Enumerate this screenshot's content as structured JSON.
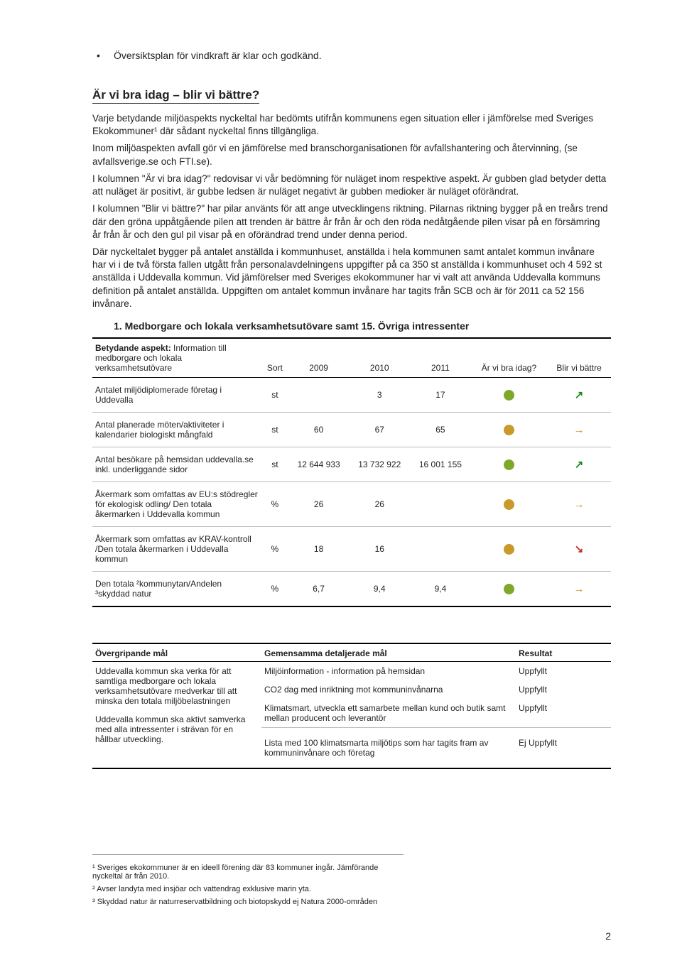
{
  "bullet": "Översiktsplan för vindkraft är klar och godkänd.",
  "heading": "Är vi bra idag – blir vi bättre?",
  "paras": [
    "Varje betydande miljöaspekts nyckeltal har bedömts utifrån kommunens egen situation eller i jämförelse med Sveriges Ekokommuner¹ där sådant nyckeltal finns tillgängliga.",
    "Inom miljöaspekten avfall gör vi en jämförelse med branschorganisationen för avfallshantering och återvinning, (se avfallsverige.se och FTI.se).",
    "I kolumnen \"Är vi bra idag?\" redovisar vi vår bedömning för nuläget inom respektive aspekt. Är gubben glad betyder detta att nuläget är positivt, är gubbe ledsen är nuläget negativt är gubben medioker är nuläget oförändrat.",
    "I kolumnen \"Blir vi bättre?\" har pilar använts för att ange utvecklingens riktning. Pilarnas riktning bygger på en treårs trend där den gröna uppåtgående pilen att trenden är bättre år från år och den röda nedåtgående pilen visar på en försämring år från år och den gul pil visar på en oförändrad trend under denna period.",
    "Där nyckeltalet bygger på antalet anställda i kommunhuset, anställda i hela kommunen samt antalet kommun invånare har vi i de två första fallen utgått från personalavdelningens uppgifter på ca 350 st anställda i kommunhuset och 4 592 st anställda i Uddevalla kommun. Vid jämförelser med Sveriges ekokommuner har vi valt att använda Uddevalla kommuns definition på antalet anställda. Uppgiften om antalet kommun invånare har tagits från SCB och är för 2011 ca 52 156 invånare."
  ],
  "subheading": "1.   Medborgare och lokala verksamhetsutövare samt 15. Övriga intressenter",
  "table1": {
    "head_label": "Betydande aspekt: Information till medborgare och lokala verksamhetsutövare",
    "cols": [
      "Sort",
      "2009",
      "2010",
      "2011",
      "Är vi bra idag?",
      "Blir vi bättre"
    ],
    "rows": [
      {
        "aspect": "Antalet miljödiplomerade företag i Uddevalla",
        "sort": "st",
        "v2009": "",
        "v2010": "3",
        "v2011": "17",
        "dot_color": "#7fa82b",
        "arrow": "↗",
        "arrow_color": "#1e8a1e"
      },
      {
        "aspect": "Antal planerade möten/aktiviteter i kalendarier biologiskt mångfald",
        "sort": "st",
        "v2009": "60",
        "v2010": "67",
        "v2011": "65",
        "dot_color": "#c79a2a",
        "arrow": "→",
        "arrow_color": "#c79a2a"
      },
      {
        "aspect": "Antal besökare på hemsidan uddevalla.se inkl. underliggande sidor",
        "sort": "st",
        "v2009": "12 644 933",
        "v2010": "13 732 922",
        "v2011": "16 001 155",
        "dot_color": "#7fa82b",
        "arrow": "↗",
        "arrow_color": "#1e8a1e"
      },
      {
        "aspect": "Åkermark som omfattas av EU:s stödregler för ekologisk odling/ Den totala åkermarken i Uddevalla kommun",
        "sort": "%",
        "v2009": "26",
        "v2010": "26",
        "v2011": "",
        "dot_color": "#c79a2a",
        "arrow": "→",
        "arrow_color": "#c79a2a"
      },
      {
        "aspect": "Åkermark som omfattas av KRAV-kontroll /Den totala åkermarken i Uddevalla kommun",
        "sort": "%",
        "v2009": "18",
        "v2010": "16",
        "v2011": "",
        "dot_color": "#c79a2a",
        "arrow": "↘",
        "arrow_color": "#c0302a"
      },
      {
        "aspect": "Den totala ²kommunytan/Andelen ³skyddad natur",
        "sort": "%",
        "v2009": "6,7",
        "v2010": "9,4",
        "v2011": "9,4",
        "dot_color": "#7fa82b",
        "arrow": "→",
        "arrow_color": "#c79a2a"
      }
    ]
  },
  "table2": {
    "left_heading": "Övergripande mål",
    "mid_heading": "Gemensamma detaljerade mål",
    "right_heading": "Resultat",
    "left_goals": [
      "Uddevalla kommun ska verka för att samtliga medborgare och lokala verksamhetsutövare medverkar till att minska den totala miljöbelastningen",
      "Uddevalla kommun ska aktivt samverka med alla intressenter i strävan för en hållbar utveckling."
    ],
    "rows": [
      {
        "goal": "Miljöinformation - information på hemsidan",
        "result": "Uppfyllt"
      },
      {
        "goal": "CO2 dag med inriktning mot kommuninvånarna",
        "result": "Uppfyllt"
      },
      {
        "goal": "Klimatsmart, utveckla ett samarbete mellan kund och butik samt mellan producent och leverantör",
        "result": "Uppfyllt"
      },
      {
        "goal": "Lista med 100 klimatsmarta miljötips som har tagits fram av kommuninvånare och företag",
        "result": "Ej Uppfyllt"
      }
    ]
  },
  "footnotes": [
    "¹ Sveriges ekokommuner är en ideell förening där 83 kommuner ingår. Jämförande nyckeltal är från 2010.",
    "² Avser landyta med insjöar och vattendrag exklusive marin yta.",
    "³ Skyddad natur är naturreservatbildning och biotopskydd ej Natura 2000-områden"
  ],
  "page_number": "2"
}
